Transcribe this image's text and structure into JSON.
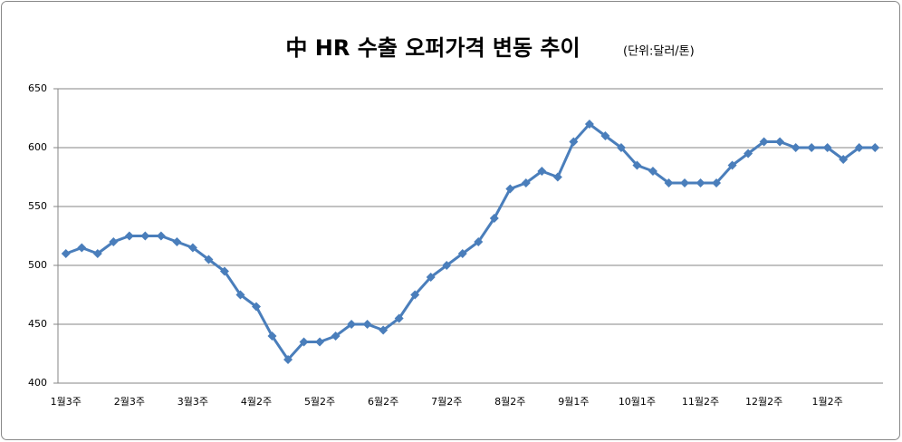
{
  "chart_data": {
    "type": "line",
    "title": "中 HR 수출 오퍼가격 변동 추이",
    "subtitle": "(단위:달러/톤)",
    "categories": [
      "1월3주",
      null,
      null,
      null,
      "2월3주",
      null,
      null,
      null,
      "3월3주",
      null,
      null,
      null,
      "4월2주",
      null,
      null,
      null,
      "5월2주",
      null,
      null,
      null,
      "6월2주",
      null,
      null,
      null,
      "7월2주",
      null,
      null,
      null,
      "8월2주",
      null,
      null,
      null,
      "9월1주",
      null,
      null,
      null,
      "10월1주",
      null,
      null,
      null,
      "11월2주",
      null,
      null,
      null,
      "12월2주",
      null,
      null,
      null,
      "1월2주",
      null,
      null,
      null
    ],
    "values": [
      510,
      515,
      510,
      520,
      525,
      525,
      525,
      520,
      515,
      505,
      495,
      475,
      465,
      440,
      420,
      435,
      435,
      440,
      450,
      450,
      445,
      455,
      475,
      490,
      500,
      510,
      520,
      540,
      565,
      570,
      580,
      575,
      605,
      620,
      610,
      600,
      585,
      580,
      570,
      570,
      570,
      570,
      585,
      595,
      605,
      605,
      600,
      600,
      600,
      590,
      600,
      600
    ],
    "color": "#4a7ebb",
    "ylim": [
      400,
      650
    ],
    "yticks": [
      400,
      450,
      500,
      550,
      600,
      650
    ],
    "grid": true
  }
}
